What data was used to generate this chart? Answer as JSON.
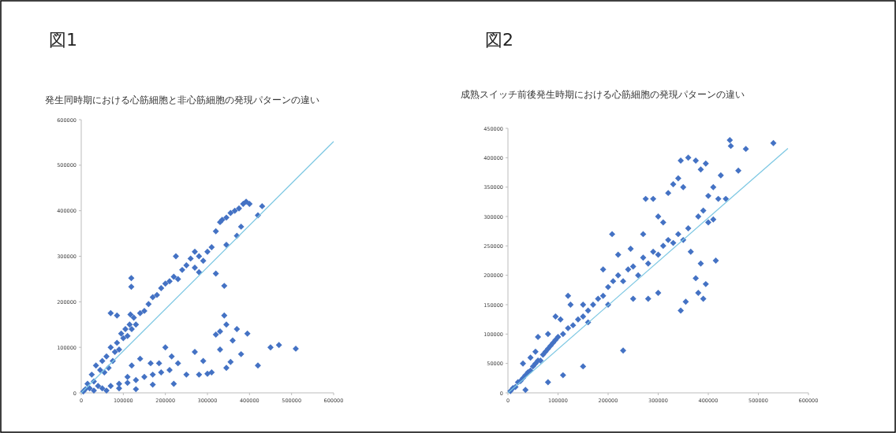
{
  "chart_data": [
    {
      "type": "scatter",
      "title": "図1",
      "subtitle": "発生同時期における心筋細胞と非心筋細胞の発現パターンの違い",
      "xlim": [
        0,
        600000
      ],
      "xticks": [
        0,
        100000,
        200000,
        300000,
        400000,
        500000,
        600000
      ],
      "ylim": [
        0,
        600000
      ],
      "yticks": [
        0,
        100000,
        200000,
        300000,
        400000,
        500000,
        600000
      ],
      "marker": "diamond",
      "series": [
        {
          "color": "#4472c4",
          "x": [
            5000,
            10000,
            15000,
            20000,
            25000,
            30000,
            35000,
            40000,
            45000,
            50000,
            55000,
            60000,
            65000,
            70000,
            75000,
            80000,
            85000,
            90000,
            95000,
            100000,
            105000,
            110000,
            115000,
            120000,
            125000,
            130000,
            140000,
            150000,
            160000,
            170000,
            180000,
            190000,
            200000,
            210000,
            220000,
            230000,
            240000,
            250000,
            260000,
            270000,
            280000,
            290000,
            300000,
            310000,
            320000,
            330000,
            335000,
            345000,
            355000,
            365000,
            375000,
            385000,
            392000,
            400000,
            380000,
            370000,
            345000,
            420000,
            430000,
            119000,
            119000,
            70000,
            85000,
            117000,
            225000,
            270000,
            280000,
            320000,
            340000,
            30000,
            50000,
            70000,
            90000,
            110000,
            130000,
            150000,
            170000,
            190000,
            210000,
            230000,
            250000,
            270000,
            290000,
            310000,
            320000,
            330000,
            340000,
            345000,
            360000,
            370000,
            380000,
            395000,
            420000,
            450000,
            470000,
            510000,
            120000,
            140000,
            165000,
            185000,
            200000,
            215000,
            110000,
            90000,
            60000,
            130000,
            170000,
            330000,
            355000,
            345000,
            280000,
            300000,
            220000
          ],
          "values": [
            3000,
            8000,
            20000,
            10000,
            40000,
            25000,
            60000,
            15000,
            50000,
            70000,
            45000,
            80000,
            55000,
            100000,
            70000,
            90000,
            110000,
            95000,
            130000,
            120000,
            140000,
            125000,
            150000,
            140000,
            165000,
            150000,
            175000,
            180000,
            195000,
            210000,
            215000,
            230000,
            240000,
            245000,
            255000,
            250000,
            270000,
            280000,
            295000,
            275000,
            300000,
            290000,
            310000,
            320000,
            355000,
            375000,
            380000,
            385000,
            395000,
            400000,
            405000,
            415000,
            420000,
            415000,
            365000,
            345000,
            325000,
            390000,
            410000,
            252000,
            233000,
            175000,
            170000,
            172000,
            300000,
            310000,
            265000,
            262000,
            235000,
            5000,
            10000,
            15000,
            20000,
            22000,
            28000,
            35000,
            40000,
            45000,
            50000,
            65000,
            40000,
            90000,
            70000,
            45000,
            128000,
            135000,
            170000,
            150000,
            115000,
            140000,
            85000,
            130000,
            60000,
            100000,
            105000,
            97000,
            60000,
            75000,
            65000,
            65000,
            100000,
            80000,
            35000,
            10000,
            5000,
            8000,
            18000,
            95000,
            68000,
            55000,
            40000,
            42000,
            20000
          ]
        },
        {
          "type": "line",
          "color": "#7ec8e3",
          "marker": "none",
          "x": [
            0,
            600000
          ],
          "values": [
            0,
            552000
          ]
        }
      ]
    },
    {
      "type": "scatter",
      "title": "図2",
      "subtitle": "成熟スイッチ前後発生時期における心筋細胞の発現パターンの違い",
      "xlim": [
        0,
        600000
      ],
      "xticks": [
        0,
        100000,
        200000,
        300000,
        400000,
        500000,
        600000
      ],
      "ylim": [
        0,
        450000
      ],
      "yticks": [
        0,
        50000,
        100000,
        150000,
        200000,
        250000,
        300000,
        350000,
        400000,
        450000
      ],
      "marker": "diamond",
      "series": [
        {
          "color": "#4472c4",
          "x": [
            5000,
            10000,
            15000,
            20000,
            25000,
            30000,
            35000,
            40000,
            45000,
            50000,
            55000,
            60000,
            65000,
            70000,
            75000,
            80000,
            85000,
            90000,
            95000,
            100000,
            110000,
            120000,
            130000,
            140000,
            150000,
            160000,
            170000,
            180000,
            190000,
            200000,
            210000,
            220000,
            230000,
            240000,
            250000,
            260000,
            270000,
            280000,
            290000,
            300000,
            310000,
            320000,
            330000,
            340000,
            350000,
            360000,
            320000,
            330000,
            340000,
            345000,
            360000,
            350000,
            375000,
            395000,
            385000,
            400000,
            410000,
            425000,
            420000,
            435000,
            443000,
            445000,
            460000,
            475000,
            530000,
            380000,
            390000,
            400000,
            410000,
            415000,
            395000,
            390000,
            380000,
            355000,
            345000,
            375000,
            385000,
            365000,
            275000,
            290000,
            300000,
            310000,
            270000,
            245000,
            220000,
            208000,
            190000,
            120000,
            105000,
            95000,
            60000,
            45000,
            80000,
            150000,
            125000,
            230000,
            150000,
            110000,
            80000,
            35000,
            160000,
            250000,
            280000,
            300000,
            200000,
            55000,
            30000
          ],
          "values": [
            3000,
            8000,
            10000,
            18000,
            20000,
            25000,
            30000,
            35000,
            38000,
            45000,
            50000,
            55000,
            55000,
            65000,
            70000,
            75000,
            80000,
            85000,
            90000,
            95000,
            100000,
            110000,
            115000,
            125000,
            130000,
            140000,
            150000,
            160000,
            165000,
            180000,
            190000,
            200000,
            190000,
            210000,
            215000,
            200000,
            230000,
            220000,
            240000,
            235000,
            250000,
            260000,
            255000,
            270000,
            260000,
            280000,
            340000,
            355000,
            365000,
            395000,
            400000,
            350000,
            395000,
            390000,
            380000,
            335000,
            350000,
            370000,
            330000,
            330000,
            430000,
            420000,
            378000,
            415000,
            425000,
            300000,
            310000,
            290000,
            295000,
            225000,
            185000,
            160000,
            170000,
            155000,
            140000,
            195000,
            220000,
            240000,
            330000,
            330000,
            300000,
            290000,
            270000,
            245000,
            235000,
            270000,
            210000,
            165000,
            125000,
            130000,
            95000,
            60000,
            100000,
            150000,
            150000,
            72000,
            45000,
            30000,
            18000,
            5000,
            120000,
            160000,
            160000,
            170000,
            150000,
            70000,
            50000
          ]
        },
        {
          "type": "line",
          "color": "#7ec8e3",
          "marker": "none",
          "x": [
            0,
            559000
          ],
          "values": [
            0,
            416000
          ]
        }
      ]
    }
  ]
}
